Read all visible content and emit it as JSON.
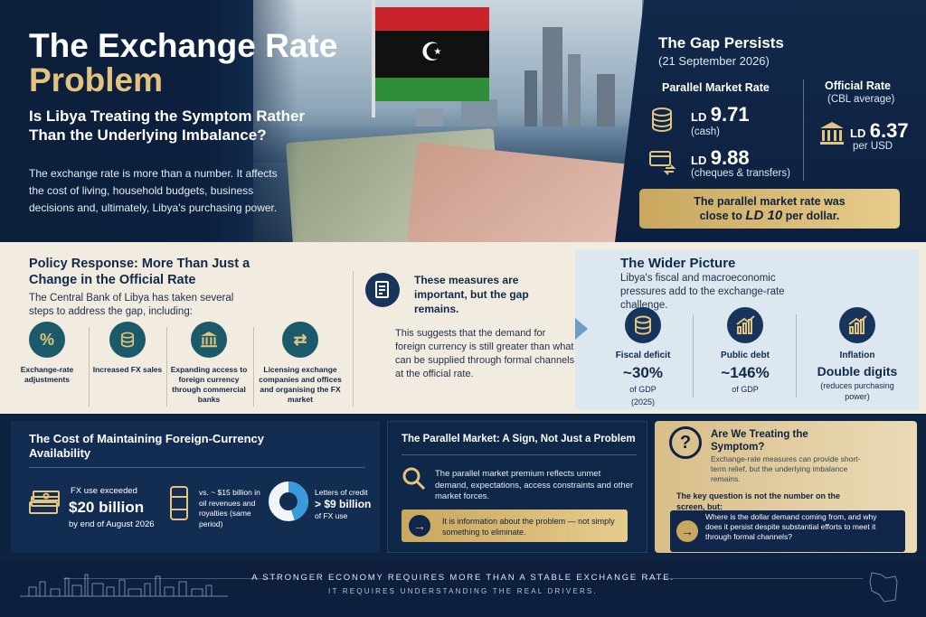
{
  "hero": {
    "title_line1": "The Exchange Rate",
    "title_line2": "Problem",
    "subtitle": "Is Libya Treating the Symptom Rather Than the Underlying Imbalance?",
    "body": "The exchange rate is more than a number. It affects the cost of living, household budgets, business decisions and, ultimately, Libya's purchasing power."
  },
  "gap": {
    "title": "The Gap Persists",
    "date": "(21 September 2026)",
    "parallel_title": "Parallel Market Rate",
    "official_title": "Official Rate",
    "official_sub": "(CBL average)",
    "cash_currency": "LD",
    "cash_value": "9.71",
    "cash_label": "(cash)",
    "cheque_currency": "LD",
    "cheque_value": "9.88",
    "cheque_label": "(cheques & transfers)",
    "official_currency": "LD",
    "official_value": "6.37",
    "official_label": "per USD",
    "note_line1": "The parallel market rate was",
    "note_pre": "close to ",
    "note_big": "LD 10",
    "note_post": " per dollar."
  },
  "policy": {
    "title": "Policy Response: More Than Just a Change in the Official Rate",
    "body": "The Central Bank of Libya has taken several steps to address the gap, including:",
    "steps": [
      {
        "label": "Exchange-rate adjustments",
        "icon": "percent-icon"
      },
      {
        "label": "Increased FX sales",
        "icon": "coins-icon"
      },
      {
        "label": "Expanding access to foreign currency through commercial banks",
        "icon": "bank-icon"
      },
      {
        "label": "Licensing exchange companies and offices and organising the FX market",
        "icon": "exchange-icon"
      }
    ]
  },
  "measures": {
    "title": "These measures are important, but the gap remains.",
    "body": "This suggests that the demand for foreign currency is still greater than what can be supplied through formal channels at the official rate."
  },
  "wider": {
    "title": "The Wider Picture",
    "subtitle": "Libya's fiscal and macroeconomic pressures add to the exchange-rate challenge.",
    "cards": [
      {
        "label": "Fiscal deficit",
        "value": "~30%",
        "unit": "of GDP",
        "note": "(2025)"
      },
      {
        "label": "Public debt",
        "value": "~146%",
        "unit": "of GDP",
        "note": ""
      },
      {
        "label": "Inflation",
        "value": "Double digits",
        "unit": "(reduces purchasing power)",
        "note": ""
      }
    ]
  },
  "cost": {
    "title": "The Cost of Maintaining Foreign-Currency Availability",
    "fx_label": "FX use exceeded",
    "fx_value": "$20 billion",
    "fx_period": "by end of August 2026",
    "oil_text": "vs. ~ $15 billion in oil revenues and royalties (same period)",
    "loc_text": "Letters of credit",
    "loc_value": "> $9 billion",
    "loc_sub": "of FX use",
    "loc_share": 0.45
  },
  "parallel": {
    "title": "The Parallel Market: A Sign, Not Just a Problem",
    "body": "The parallel market premium reflects unmet demand, expectations, access constraints and other market forces.",
    "note": "It is information about the problem — not simply something to eliminate."
  },
  "treat": {
    "title": "Are We Treating the Symptom?",
    "sub": "Exchange-rate measures can provide short-term relief, but the underlying imbalance remains.",
    "key": "The key question is not the number on the screen, but:",
    "question": "Where is the dollar demand coming from, and why does it persist despite substantial efforts to meet it through formal channels?"
  },
  "footer": {
    "line1": "A STRONGER ECONOMY REQUIRES MORE THAN A STABLE EXCHANGE RATE.",
    "line2": "IT REQUIRES UNDERSTANDING THE REAL DRIVERS."
  },
  "colors": {
    "navy": "#0e2340",
    "gold": "#e3c47f",
    "teal": "#1b5a6a",
    "cream": "#f2ece0"
  }
}
